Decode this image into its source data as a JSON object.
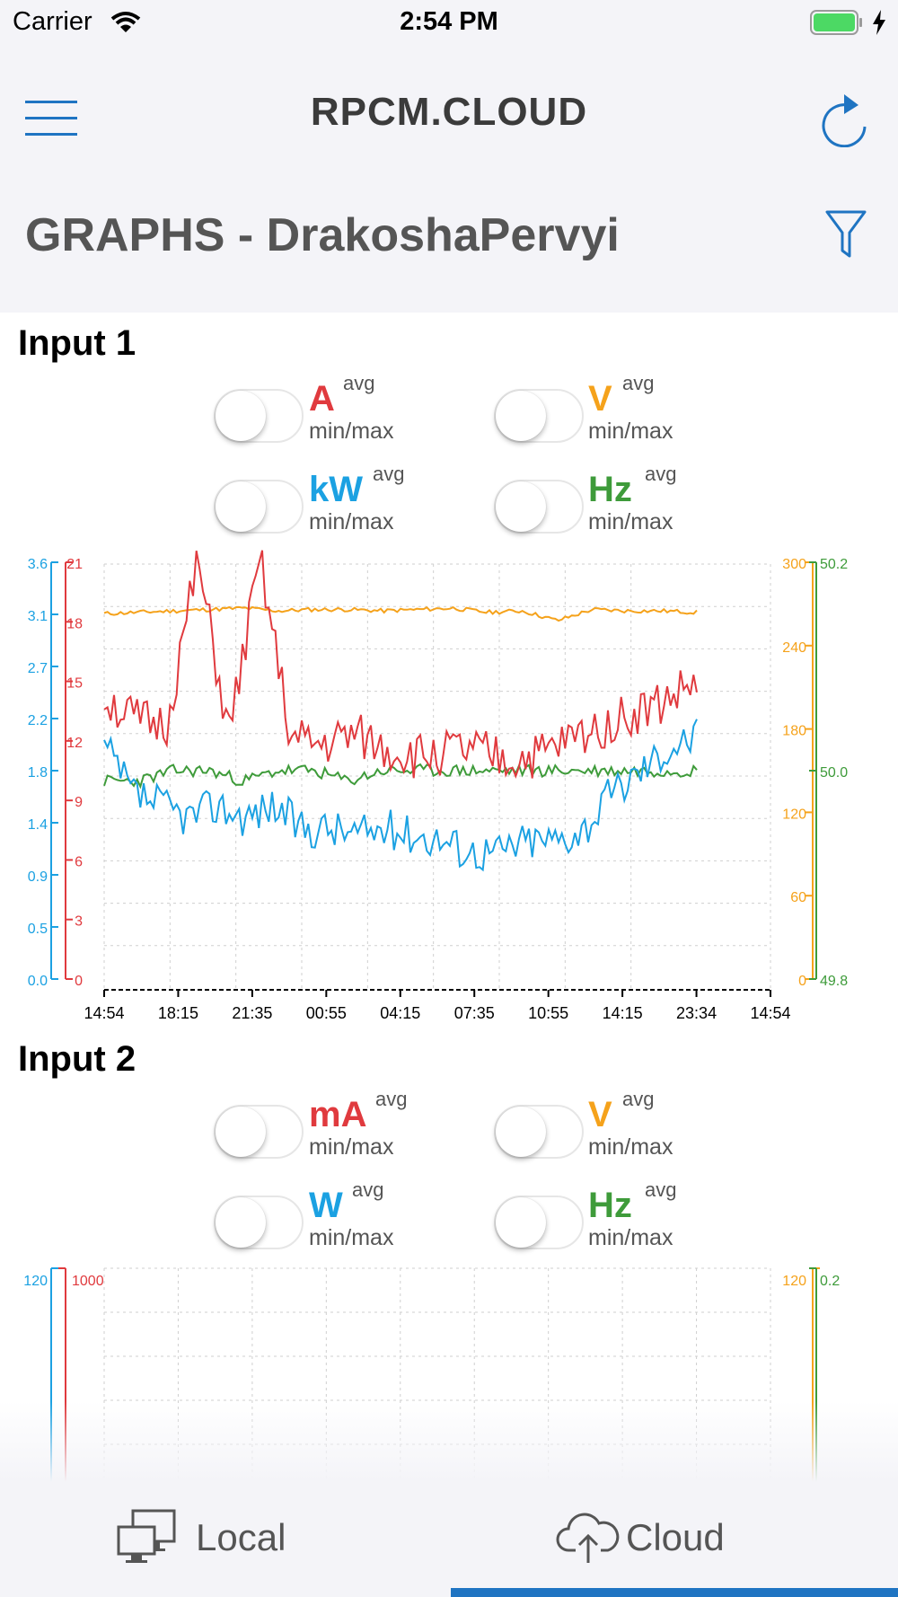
{
  "status_bar": {
    "carrier": "Carrier",
    "time": "2:54 PM"
  },
  "header": {
    "logo": "RPCM.CLOUD",
    "title": "GRAPHS - DrakoshaPervyi"
  },
  "colors": {
    "current": "#e03a3e",
    "voltage": "#f5a21b",
    "power": "#1ba1e2",
    "frequency": "#3e9b3a",
    "accent": "#1f74c2"
  },
  "icons": {
    "menu": "hamburger-menu-icon",
    "refresh": "refresh-icon",
    "filter": "filter-icon",
    "local": "computers-icon",
    "cloud": "cloud-upload-icon"
  },
  "inputs": [
    {
      "title": "Input 1",
      "metrics": [
        {
          "unit": "A",
          "avg": "avg",
          "minmax": "min/max",
          "enabled": false
        },
        {
          "unit": "V",
          "avg": "avg",
          "minmax": "min/max",
          "enabled": false
        },
        {
          "unit": "kW",
          "avg": "avg",
          "minmax": "min/max",
          "enabled": false
        },
        {
          "unit": "Hz",
          "avg": "avg",
          "minmax": "min/max",
          "enabled": false
        }
      ]
    },
    {
      "title": "Input 2",
      "metrics": [
        {
          "unit": "mA",
          "avg": "avg",
          "minmax": "min/max",
          "enabled": false
        },
        {
          "unit": "V",
          "avg": "avg",
          "minmax": "min/max",
          "enabled": false
        },
        {
          "unit": "W",
          "avg": "avg",
          "minmax": "min/max",
          "enabled": false
        },
        {
          "unit": "Hz",
          "avg": "avg",
          "minmax": "min/max",
          "enabled": false
        }
      ]
    }
  ],
  "chart_data": [
    {
      "type": "line",
      "x_ticks": [
        "14:54",
        "18:15",
        "21:35",
        "00:55",
        "04:15",
        "07:35",
        "10:55",
        "14:15",
        "23:34",
        "14:54"
      ],
      "axes": {
        "kW": {
          "ticks": [
            "0.0",
            "0.5",
            "0.9",
            "1.4",
            "1.8",
            "2.2",
            "2.7",
            "3.1",
            "3.6"
          ],
          "range": [
            0,
            3.6
          ]
        },
        "A": {
          "ticks": [
            "0",
            "3",
            "6",
            "9",
            "12",
            "15",
            "18",
            "21"
          ],
          "range": [
            0,
            21
          ]
        },
        "V": {
          "ticks": [
            "0",
            "60",
            "120",
            "180",
            "240",
            "300"
          ],
          "range": [
            0,
            300
          ]
        },
        "Hz": {
          "ticks": [
            "49.8",
            "50.0",
            "50.2"
          ],
          "range": [
            49.8,
            50.2
          ]
        }
      },
      "grid": true,
      "series": [
        {
          "name": "V",
          "values": [
            263,
            264,
            265,
            266,
            267,
            265,
            266,
            266,
            265,
            266,
            267,
            264,
            265,
            258,
            266,
            265,
            265,
            264
          ]
        },
        {
          "name": "A",
          "values": [
            14.2,
            13.0,
            12.8,
            21,
            12.3,
            21,
            12.0,
            11.8,
            12.3,
            11.6,
            11.2,
            11.5,
            11.4,
            11.0,
            11.3,
            12.1,
            12.8,
            13.4,
            14.0,
            15.0
          ]
        },
        {
          "name": "kW",
          "values": [
            2.0,
            1.6,
            1.5,
            1.4,
            1.5,
            1.4,
            1.5,
            1.3,
            1.3,
            1.25,
            1.3,
            1.25,
            1.2,
            1.1,
            1.1,
            1.2,
            1.2,
            1.3,
            1.6,
            1.8,
            2.0,
            2.1
          ]
        },
        {
          "name": "Hz",
          "values": [
            49.99,
            49.99,
            50.0,
            50.0,
            49.99,
            50.0,
            50.0,
            49.99,
            50.0,
            50.0,
            50.0,
            50.0,
            50.0,
            50.0,
            50.0,
            50.0,
            50.0,
            50.0
          ]
        }
      ]
    },
    {
      "type": "line",
      "axes": {
        "W": {
          "ticks": [
            "120"
          ],
          "range": [
            0,
            120
          ]
        },
        "mA": {
          "ticks": [
            "1000"
          ],
          "range": [
            0,
            1000
          ]
        },
        "V": {
          "ticks": [
            "120"
          ],
          "range": [
            0,
            120
          ]
        },
        "Hz": {
          "ticks": [
            "0.2"
          ],
          "range": [
            0,
            0.2
          ]
        }
      },
      "grid": true,
      "series": []
    }
  ],
  "tabbar": {
    "local": "Local",
    "cloud": "Cloud",
    "active": "cloud"
  }
}
